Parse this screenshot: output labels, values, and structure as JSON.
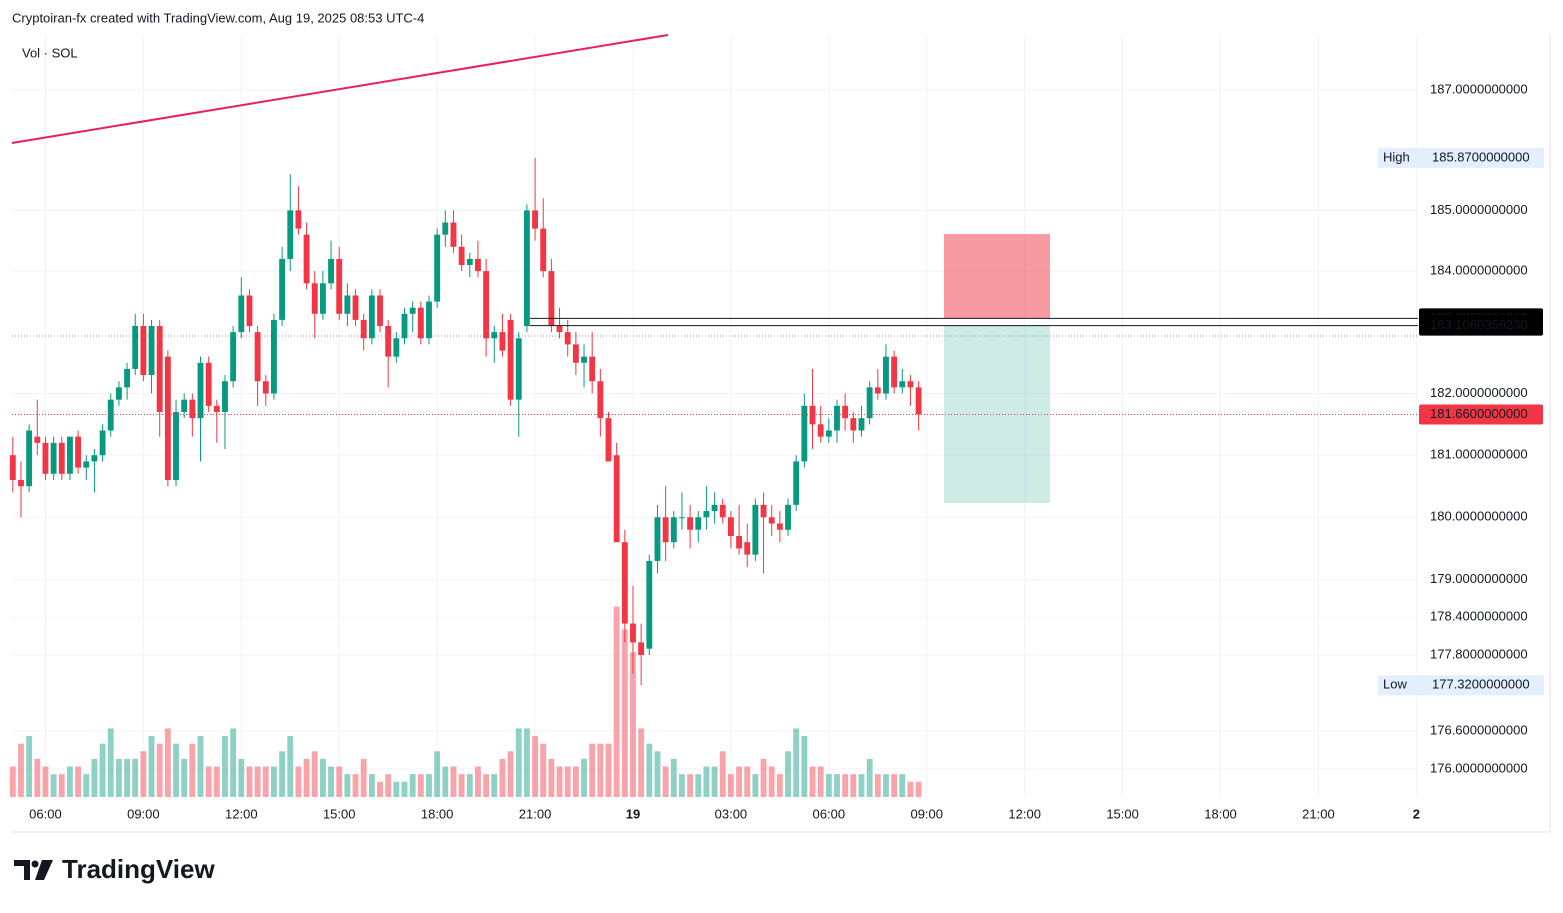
{
  "chart_data": {
    "type": "candlestick",
    "title": "Cryptoiran-fx created with TradingView.com, Aug 19, 2025 08:53 UTC-4",
    "legend_label": "Vol · SOL",
    "log": true,
    "grid": true,
    "up_color": "#089981",
    "down_color": "#f23645",
    "open": [
      181.0,
      180.6,
      180.5,
      181.3,
      181.2,
      180.7,
      181.2,
      180.7,
      181.3,
      180.8,
      180.9,
      181.0,
      181.4,
      181.9,
      182.1,
      182.4,
      183.1,
      182.3,
      183.1,
      182.6,
      180.6,
      181.7,
      181.9,
      181.6,
      182.5,
      181.8,
      181.7,
      182.2,
      183.0,
      183.6,
      183.0,
      182.2,
      182.0,
      183.2,
      184.2,
      185.0,
      184.6,
      183.8,
      183.3,
      183.8,
      184.2,
      183.3,
      183.6,
      183.2,
      182.9,
      183.6,
      183.1,
      182.6,
      182.9,
      183.3,
      183.4,
      182.9,
      183.5,
      184.6,
      184.8,
      184.4,
      184.1,
      184.2,
      184.0,
      182.9,
      183.0,
      183.2,
      181.9,
      183.1,
      185.0,
      184.7,
      184.0,
      183.1,
      183.0,
      182.8,
      182.5,
      182.6,
      182.2,
      181.6,
      181.0,
      179.6,
      178.3,
      178.0,
      177.9,
      179.3,
      180.0,
      179.6,
      180.0,
      180.0,
      179.8,
      180.0,
      180.1,
      180.2,
      180.0,
      179.7,
      179.6,
      179.4,
      180.2,
      180.0,
      179.9,
      179.8,
      180.2,
      180.9,
      181.8,
      181.5,
      181.3,
      181.4,
      181.8,
      181.6,
      181.4,
      181.6,
      182.1,
      182.0,
      182.6,
      182.1,
      182.2,
      182.1
    ],
    "high": [
      181.3,
      180.9,
      181.5,
      181.9,
      181.3,
      181.3,
      181.3,
      181.3,
      181.4,
      181.0,
      181.1,
      181.5,
      182.0,
      182.2,
      182.5,
      183.3,
      183.3,
      183.2,
      183.2,
      182.7,
      181.9,
      182.0,
      182.0,
      182.6,
      182.6,
      181.9,
      182.3,
      183.1,
      183.9,
      183.7,
      183.1,
      182.3,
      183.3,
      184.4,
      185.6,
      185.4,
      184.8,
      184.0,
      184.0,
      184.5,
      184.4,
      183.8,
      183.7,
      183.3,
      183.7,
      183.7,
      183.2,
      183.0,
      183.4,
      183.5,
      183.5,
      183.6,
      184.7,
      185.0,
      185.0,
      184.6,
      184.3,
      184.5,
      184.2,
      183.1,
      183.3,
      183.3,
      183.0,
      185.1,
      185.87,
      185.2,
      184.2,
      183.4,
      183.2,
      183.0,
      182.8,
      183.0,
      182.4,
      181.7,
      181.2,
      179.8,
      178.9,
      178.3,
      179.4,
      180.2,
      180.5,
      180.1,
      180.4,
      180.2,
      180.1,
      180.5,
      180.4,
      180.3,
      180.1,
      180.2,
      179.9,
      180.3,
      180.4,
      180.2,
      180.1,
      180.3,
      181.0,
      182.0,
      182.4,
      181.8,
      181.6,
      181.9,
      182.0,
      181.7,
      181.8,
      182.2,
      182.4,
      182.8,
      182.7,
      182.4,
      182.3,
      182.2
    ],
    "low": [
      180.4,
      180.0,
      180.4,
      181.0,
      180.6,
      180.6,
      180.6,
      180.6,
      180.7,
      180.6,
      180.4,
      180.9,
      181.3,
      181.8,
      181.9,
      182.3,
      182.2,
      182.0,
      181.3,
      180.5,
      180.5,
      181.6,
      181.3,
      180.9,
      181.7,
      181.2,
      181.1,
      182.1,
      182.9,
      183.0,
      181.8,
      181.8,
      181.9,
      183.1,
      184.0,
      184.6,
      183.7,
      182.9,
      183.2,
      183.7,
      183.2,
      183.1,
      183.1,
      182.7,
      182.8,
      183.0,
      182.1,
      182.5,
      182.8,
      183.0,
      182.8,
      182.8,
      183.4,
      184.4,
      184.3,
      184.0,
      183.9,
      183.9,
      182.6,
      182.5,
      182.6,
      181.8,
      181.3,
      183.0,
      184.5,
      183.9,
      183.0,
      182.9,
      182.6,
      182.3,
      182.1,
      182.0,
      181.3,
      180.9,
      179.6,
      178.0,
      177.5,
      177.32,
      177.8,
      179.1,
      179.3,
      179.5,
      179.8,
      179.5,
      179.6,
      179.8,
      179.9,
      179.9,
      179.5,
      179.4,
      179.2,
      179.3,
      179.1,
      179.7,
      179.6,
      179.7,
      180.1,
      180.8,
      181.1,
      181.2,
      181.2,
      181.2,
      181.4,
      181.2,
      181.3,
      181.5,
      181.9,
      181.9,
      182.0,
      182.0,
      181.8,
      181.4
    ],
    "close": [
      180.6,
      180.5,
      181.4,
      181.2,
      180.7,
      181.2,
      180.7,
      181.3,
      180.8,
      180.9,
      181.0,
      181.4,
      181.9,
      182.1,
      182.4,
      183.1,
      182.3,
      183.1,
      181.7,
      180.6,
      181.7,
      181.9,
      181.6,
      182.5,
      181.8,
      181.7,
      182.2,
      183.0,
      183.6,
      183.1,
      182.2,
      182.0,
      183.2,
      184.2,
      185.0,
      184.7,
      183.8,
      183.3,
      183.8,
      184.2,
      183.3,
      183.6,
      183.2,
      182.9,
      183.6,
      183.1,
      182.6,
      182.9,
      183.3,
      183.4,
      182.9,
      183.5,
      184.6,
      184.8,
      184.4,
      184.1,
      184.2,
      184.0,
      182.9,
      183.0,
      182.7,
      181.9,
      182.9,
      185.0,
      184.7,
      184.0,
      183.1,
      183.0,
      182.8,
      182.5,
      182.6,
      182.2,
      181.6,
      180.9,
      179.6,
      178.3,
      178.0,
      177.8,
      179.3,
      180.0,
      179.6,
      180.0,
      180.0,
      179.8,
      180.0,
      180.1,
      180.2,
      180.0,
      179.7,
      179.5,
      179.4,
      180.2,
      180.0,
      179.9,
      179.8,
      180.2,
      180.9,
      181.8,
      181.5,
      181.3,
      181.4,
      181.8,
      181.6,
      181.4,
      181.6,
      182.1,
      182.0,
      182.6,
      182.1,
      182.2,
      182.1,
      181.66
    ],
    "volumes": [
      4,
      7,
      8,
      5,
      4,
      3,
      3,
      4,
      4,
      3,
      5,
      7,
      9,
      5,
      5,
      5,
      6,
      8,
      7,
      9,
      7,
      5,
      7,
      8,
      4,
      4,
      8,
      9,
      5,
      4,
      4,
      4,
      4,
      6,
      8,
      4,
      5,
      6,
      5,
      4,
      4,
      3,
      3,
      5,
      3,
      2,
      3,
      2,
      2,
      3,
      3,
      3,
      6,
      4,
      4,
      3,
      3,
      4,
      3,
      3,
      5,
      6,
      9,
      9,
      8,
      7,
      5,
      4,
      4,
      4,
      5,
      7,
      7,
      7,
      25,
      22,
      19,
      9,
      7,
      6,
      4,
      5,
      3,
      3,
      3,
      4,
      4,
      6,
      3,
      4,
      4,
      3,
      5,
      4,
      3,
      6,
      9,
      8,
      4,
      4,
      3,
      3,
      3,
      3,
      3,
      5,
      3,
      3,
      3,
      3,
      2,
      2
    ],
    "xlim": [
      -0.1,
      172.2
    ],
    "xticks": [
      {
        "value": 4,
        "label": "06:00"
      },
      {
        "value": 16,
        "label": "09:00"
      },
      {
        "value": 28,
        "label": "12:00"
      },
      {
        "value": 40,
        "label": "15:00"
      },
      {
        "value": 52,
        "label": "18:00"
      },
      {
        "value": 64,
        "label": "21:00"
      },
      {
        "value": 76,
        "label": "19"
      },
      {
        "value": 88,
        "label": "03:00"
      },
      {
        "value": 100,
        "label": "06:00"
      },
      {
        "value": 112,
        "label": "09:00"
      },
      {
        "value": 124,
        "label": "12:00"
      },
      {
        "value": 136,
        "label": "15:00"
      },
      {
        "value": 148,
        "label": "18:00"
      },
      {
        "value": 160,
        "label": "21:00"
      },
      {
        "value": 172,
        "label": "2"
      }
    ],
    "ylim": [
      175.56,
      187.92
    ],
    "yticks": [
      {
        "value": 187,
        "label": "187.0000000000"
      },
      {
        "value": 185,
        "label": "185.0000000000"
      },
      {
        "value": 184,
        "label": "184.0000000000"
      },
      {
        "value": 182,
        "label": "182.0000000000"
      },
      {
        "value": 181,
        "label": "181.0000000000"
      },
      {
        "value": 180,
        "label": "180.0000000000"
      },
      {
        "value": 179,
        "label": "179.0000000000"
      },
      {
        "value": 178.4,
        "label": "178.4000000000"
      },
      {
        "value": 177.8,
        "label": "177.8000000000"
      },
      {
        "value": 176.6,
        "label": "176.6000000000"
      },
      {
        "value": 176,
        "label": "176.0000000000"
      }
    ],
    "y2lim": [
      0,
      100
    ],
    "high_label": "High",
    "high_value": {
      "value": 185.87,
      "label": "185.8700000000"
    },
    "low_label": "Low",
    "low_value": {
      "value": 177.32,
      "label": "177.3200000000"
    },
    "last_price": {
      "value": 181.66,
      "label": "181.6600000000"
    },
    "price_lines": [
      {
        "value": 183.2255923668,
        "label": "183.2255923668"
      },
      {
        "value": 183.106035923,
        "label": "183.1060359230"
      }
    ],
    "position": {
      "stop": 184.61,
      "target": 180.23
    }
  },
  "footer": {
    "brand": "TradingView"
  }
}
